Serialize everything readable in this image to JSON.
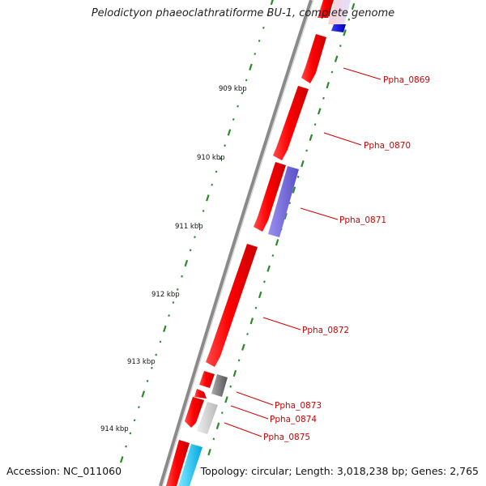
{
  "title": "Pelodictyon phaeoclathratiforme BU-1, complete genome",
  "footer": {
    "accession": "Accession: NC_011060",
    "stats": "Topology: circular; Length: 3,018,238 bp; Genes: 2,765"
  },
  "scale_labels": [
    "909 kbp",
    "910 kbp",
    "911 kbp",
    "912 kbp",
    "913 kbp",
    "914 kbp"
  ],
  "gene_labels": [
    "Ppha_0869",
    "Ppha_0870",
    "Ppha_0871",
    "Ppha_0872",
    "Ppha_0873",
    "Ppha_0874",
    "Ppha_0875"
  ],
  "colors": {
    "cds_forward": "#ff0000",
    "blast_blue": "#0000ee",
    "blast_purple": "#7a6fd6",
    "blast_gray": "#777777",
    "blast_lightgray": "#c8c8c8",
    "blast_cyan": "#20c8f0",
    "backbone": "#888888",
    "tick": "#2a8a2a",
    "label": "#d40000"
  }
}
